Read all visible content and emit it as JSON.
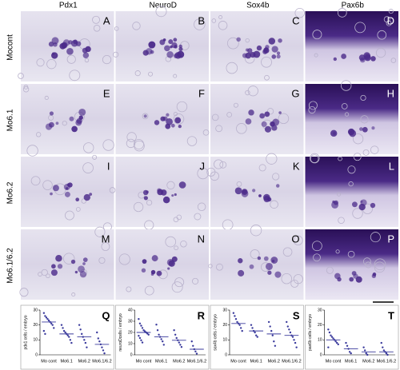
{
  "columns": [
    "Pdx1",
    "NeuroD",
    "Sox4b",
    "Pax6b"
  ],
  "rows": [
    "Mocont",
    "Mo6.1",
    "Mo6.2",
    "Mo6.1/6.2"
  ],
  "panel_letters": [
    [
      "A",
      "B",
      "C",
      "D"
    ],
    [
      "E",
      "F",
      "G",
      "H"
    ],
    [
      "I",
      "J",
      "K",
      "L"
    ],
    [
      "M",
      "N",
      "O",
      "P"
    ]
  ],
  "chart_data": [
    {
      "type": "scatter",
      "letter": "Q",
      "ylabel": "pdx1 cells / embryo",
      "categories": [
        "Mo cont",
        "Mo6.1",
        "Mo6.2",
        "Mo6.1/6.2"
      ],
      "color": "#3a3a9c",
      "ylim": [
        0,
        30
      ],
      "yticks": [
        0,
        10,
        20,
        30
      ],
      "means": [
        22,
        14,
        12,
        7
      ],
      "points": [
        [
          28,
          26,
          25,
          24,
          23,
          22,
          21,
          20,
          18,
          16,
          14
        ],
        [
          20,
          18,
          16,
          15,
          14,
          13,
          12,
          10,
          8
        ],
        [
          20,
          17,
          14,
          12,
          10,
          8,
          5
        ],
        [
          15,
          11,
          9,
          7,
          5,
          3,
          1
        ]
      ]
    },
    {
      "type": "scatter",
      "letter": "R",
      "ylabel": "neuroDcells / embryo",
      "categories": [
        "Mo cont",
        "Mo6.1",
        "Mo6.2",
        "Mo6.1/6.2"
      ],
      "color": "#3a3a9c",
      "ylim": [
        0,
        40
      ],
      "yticks": [
        0,
        10,
        20,
        30,
        40
      ],
      "means": [
        20,
        16,
        13,
        5
      ],
      "points": [
        [
          32,
          28,
          26,
          24,
          22,
          21,
          20,
          19,
          18,
          17,
          15,
          13,
          11
        ],
        [
          27,
          22,
          18,
          16,
          14,
          12,
          9
        ],
        [
          22,
          18,
          15,
          13,
          11,
          9,
          7
        ],
        [
          12,
          8,
          5,
          3,
          1
        ]
      ]
    },
    {
      "type": "scatter",
      "letter": "S",
      "ylabel": "sox4b cells / embryo",
      "categories": [
        "Mo cont",
        "Mo6.1",
        "Mo6.2",
        "Mo6.1/6.2"
      ],
      "color": "#3a3a9c",
      "ylim": [
        0,
        30
      ],
      "yticks": [
        0,
        10,
        20,
        30
      ],
      "means": [
        21,
        16,
        14,
        13
      ],
      "points": [
        [
          28,
          26,
          24,
          22,
          21,
          20,
          18,
          16
        ],
        [
          20,
          18,
          16,
          15,
          13,
          12
        ],
        [
          22,
          19,
          16,
          13,
          9,
          6
        ],
        [
          22,
          19,
          17,
          15,
          13,
          12,
          10,
          8,
          5
        ]
      ]
    },
    {
      "type": "scatter",
      "letter": "T",
      "ylabel": "pax6b cells / embryo",
      "categories": [
        "Mo cont",
        "Mo6.1",
        "Mo6.2",
        "Mo6.1/6.2"
      ],
      "color": "#3a3a9c",
      "ylim": [
        0,
        30
      ],
      "yticks": [
        0,
        10,
        20,
        30
      ],
      "means": [
        10,
        4,
        2,
        2
      ],
      "points": [
        [
          17,
          15,
          13,
          12,
          11,
          10,
          9,
          8,
          7,
          5
        ],
        [
          8,
          6,
          4,
          2,
          1
        ],
        [
          5,
          3,
          1,
          0
        ],
        [
          8,
          5,
          3,
          2,
          1,
          0
        ]
      ]
    }
  ]
}
